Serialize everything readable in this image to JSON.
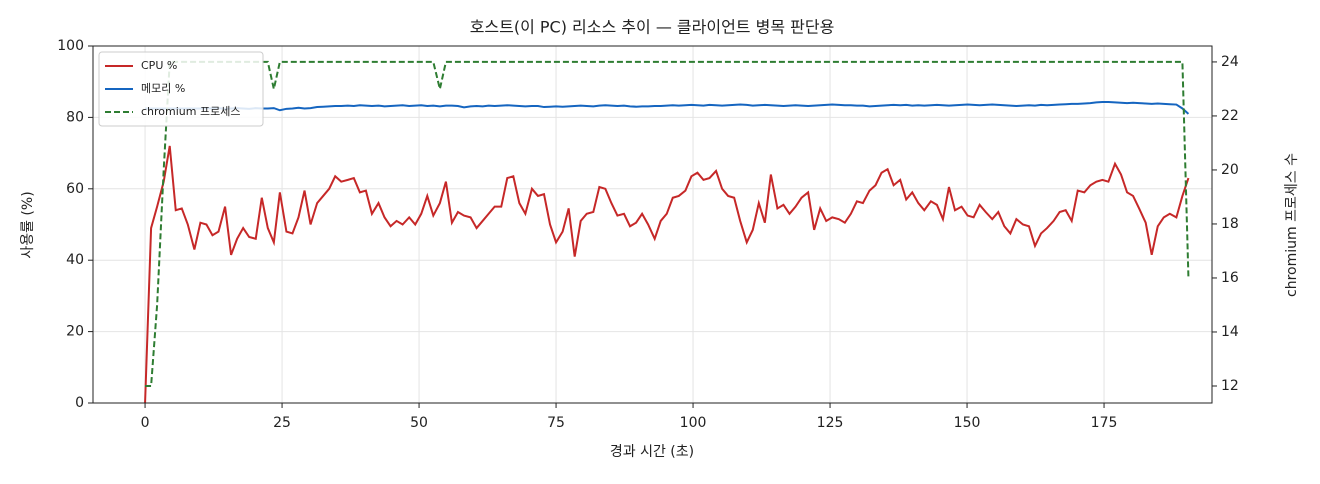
{
  "chart_data": {
    "type": "line",
    "title": "호스트(이 PC) 리소스 추이 — 클라이언트 병목 판단용",
    "x_label": "경과 시간 (초)",
    "y_label": "사용률 (%)",
    "y2_label": "chromium 프로세스 수",
    "xlim": [
      -9.5,
      194.7
    ],
    "xticks": [
      0,
      25,
      50,
      75,
      100,
      125,
      150,
      175
    ],
    "ylim": [
      0,
      100
    ],
    "yticks": [
      0,
      20,
      40,
      60,
      80,
      100
    ],
    "y2lim": [
      11.37,
      24.59
    ],
    "y2ticks": [
      12,
      14,
      16,
      18,
      20,
      22,
      24
    ],
    "grid": true,
    "legend": "upper left",
    "x": [
      0,
      1.1,
      2.2,
      3.4,
      4.5,
      5.6,
      6.7,
      7.8,
      9,
      10.1,
      11.2,
      12.3,
      13.4,
      14.6,
      15.7,
      16.8,
      17.9,
      19,
      20.2,
      21.3,
      22.4,
      23.5,
      24.6,
      25.8,
      26.9,
      28,
      29.1,
      30.2,
      31.4,
      32.5,
      33.6,
      34.7,
      35.8,
      37,
      38.1,
      39.2,
      40.3,
      41.4,
      42.6,
      43.7,
      44.8,
      45.9,
      47,
      48.2,
      49.3,
      50.4,
      51.5,
      52.6,
      53.8,
      54.9,
      56,
      57.1,
      58.2,
      59.4,
      60.5,
      61.6,
      62.7,
      63.8,
      65,
      66.1,
      67.2,
      68.3,
      69.4,
      70.6,
      71.7,
      72.8,
      73.9,
      75,
      76.2,
      77.3,
      78.4,
      79.5,
      80.6,
      81.8,
      82.9,
      84,
      85.1,
      86.2,
      87.4,
      88.5,
      89.6,
      90.7,
      91.8,
      93,
      94.1,
      95.2,
      96.3,
      97.4,
      98.6,
      99.7,
      100.8,
      101.9,
      103,
      104.2,
      105.3,
      106.4,
      107.5,
      108.6,
      109.8,
      110.9,
      112,
      113.1,
      114.2,
      115.4,
      116.5,
      117.6,
      118.7,
      119.8,
      121,
      122.1,
      123.2,
      124.3,
      125.4,
      126.6,
      127.7,
      128.8,
      129.9,
      131,
      132.2,
      133.3,
      134.4,
      135.5,
      136.6,
      137.8,
      138.9,
      140,
      141.1,
      142.2,
      143.4,
      144.5,
      145.6,
      146.7,
      147.8,
      149,
      150.1,
      151.2,
      152.3,
      153.4,
      154.6,
      155.7,
      156.8,
      157.9,
      159,
      160.2,
      161.3,
      162.4,
      163.5,
      164.6,
      165.8,
      166.9,
      168,
      169.1,
      170.2,
      171.4,
      172.5,
      173.6,
      174.7,
      175.8,
      177,
      178.1,
      179.2,
      180.3,
      181.4,
      182.6,
      183.7,
      184.8,
      185.9,
      187,
      188.2,
      189.3,
      190.4
    ],
    "series": [
      {
        "name": "CPU %",
        "color": "#c62828",
        "linestyle": "solid",
        "values": [
          0,
          49,
          55,
          62,
          72,
          54,
          54.5,
          50,
          43,
          50.5,
          50,
          47,
          48,
          55,
          41.5,
          46,
          49,
          46.5,
          46,
          57.5,
          49,
          45,
          59,
          48,
          47.5,
          52,
          59.5,
          50,
          56,
          58,
          60,
          63.5,
          62,
          62.5,
          63,
          59,
          59.5,
          53,
          56,
          52,
          49.5,
          51,
          50,
          52,
          50,
          53,
          58,
          52.5,
          56,
          62,
          50.5,
          53.5,
          52.5,
          52,
          49,
          51,
          53,
          55,
          55,
          63,
          63.5,
          56,
          53,
          60,
          58,
          58.5,
          50,
          45,
          48,
          54.5,
          41,
          51,
          53,
          53.5,
          60.5,
          60,
          56,
          52.5,
          53,
          49.5,
          50.5,
          53,
          50,
          46,
          51,
          53,
          57.5,
          58,
          59.5,
          63.5,
          64.5,
          62.5,
          63,
          65,
          60,
          58,
          57.5,
          51,
          45,
          48.5,
          56,
          50.5,
          64,
          54.5,
          55.5,
          53,
          55,
          57.5,
          59,
          48.5,
          54.5,
          51,
          52,
          51.5,
          50.5,
          53,
          56.5,
          56,
          59.5,
          61,
          64.5,
          65.5,
          61,
          62.5,
          57,
          59,
          56,
          54,
          56.5,
          55.5,
          51.5,
          60.5,
          54,
          55,
          52.5,
          52,
          55.5,
          53.5,
          51.5,
          53.5,
          49.5,
          47.5,
          51.5,
          50,
          49.5,
          44,
          47.5,
          49,
          51,
          53.5,
          54,
          51,
          59.5,
          59,
          61,
          62,
          62.5,
          62,
          67,
          64,
          59,
          58,
          54.5,
          50.5,
          41.5,
          49.5,
          52,
          53,
          52,
          58,
          63
        ]
      },
      {
        "name": "메모리 %",
        "color": "#1565c0",
        "linestyle": "solid",
        "values": [
          82.5,
          82.5,
          82.5,
          82.5,
          82.5,
          82.5,
          82.5,
          82.5,
          82.5,
          82.5,
          82.6,
          82.5,
          82.6,
          82.4,
          82.5,
          82.6,
          82.5,
          82.4,
          82.6,
          82.5,
          82.5,
          82.6,
          82,
          82.4,
          82.5,
          82.7,
          82.5,
          82.6,
          82.9,
          83,
          83.1,
          83.2,
          83.2,
          83.3,
          83.2,
          83.4,
          83.3,
          83.2,
          83.3,
          83.1,
          83.2,
          83.3,
          83.4,
          83.2,
          83.3,
          83.4,
          83.2,
          83.3,
          83.1,
          83.3,
          83.3,
          83.2,
          82.8,
          83.1,
          83.2,
          83.1,
          83.3,
          83.2,
          83.3,
          83.4,
          83.3,
          83.2,
          83.1,
          83.2,
          83.2,
          82.9,
          83,
          83.1,
          83,
          83.1,
          83.2,
          83.3,
          83.2,
          83.1,
          83.3,
          83.4,
          83.3,
          83.2,
          83.3,
          83.1,
          83,
          83.1,
          83.1,
          83.2,
          83.2,
          83.3,
          83.4,
          83.3,
          83.4,
          83.5,
          83.4,
          83.3,
          83.5,
          83.4,
          83.3,
          83.4,
          83.5,
          83.6,
          83.5,
          83.3,
          83.4,
          83.5,
          83.4,
          83.3,
          83.2,
          83.3,
          83.4,
          83.3,
          83.2,
          83.3,
          83.4,
          83.5,
          83.6,
          83.5,
          83.4,
          83.4,
          83.3,
          83.3,
          83.1,
          83.2,
          83.3,
          83.4,
          83.5,
          83.4,
          83.5,
          83.3,
          83.4,
          83.3,
          83.4,
          83.5,
          83.4,
          83.3,
          83.4,
          83.5,
          83.6,
          83.5,
          83.4,
          83.5,
          83.6,
          83.5,
          83.4,
          83.3,
          83.2,
          83.3,
          83.4,
          83.3,
          83.5,
          83.4,
          83.5,
          83.6,
          83.7,
          83.8,
          83.8,
          83.9,
          84,
          84.2,
          84.3,
          84.3,
          84.2,
          84.1,
          84,
          84.1,
          84,
          83.9,
          83.8,
          83.9,
          83.8,
          83.7,
          83.6,
          82.5,
          81
        ]
      },
      {
        "name": "chromium 프로세스",
        "color": "#2e7d32",
        "linestyle": "dashed",
        "axis": "y2",
        "values": [
          12,
          12,
          15,
          20,
          24,
          24,
          24,
          24,
          24,
          24,
          24,
          24,
          24,
          24,
          24,
          24,
          24,
          24,
          24,
          24,
          24,
          23,
          24,
          24,
          24,
          24,
          24,
          24,
          24,
          24,
          24,
          24,
          24,
          24,
          24,
          24,
          24,
          24,
          24,
          24,
          24,
          24,
          24,
          24,
          24,
          24,
          24,
          24,
          23,
          24,
          24,
          24,
          24,
          24,
          24,
          24,
          24,
          24,
          24,
          24,
          24,
          24,
          24,
          24,
          24,
          24,
          24,
          24,
          24,
          24,
          24,
          24,
          24,
          24,
          24,
          24,
          24,
          24,
          24,
          24,
          24,
          24,
          24,
          24,
          24,
          24,
          24,
          24,
          24,
          24,
          24,
          24,
          24,
          24,
          24,
          24,
          24,
          24,
          24,
          24,
          24,
          24,
          24,
          24,
          24,
          24,
          24,
          24,
          24,
          24,
          24,
          24,
          24,
          24,
          24,
          24,
          24,
          24,
          24,
          24,
          24,
          24,
          24,
          24,
          24,
          24,
          24,
          24,
          24,
          24,
          24,
          24,
          24,
          24,
          24,
          24,
          24,
          24,
          24,
          24,
          24,
          24,
          24,
          24,
          24,
          24,
          24,
          24,
          24,
          24,
          24,
          24,
          24,
          24,
          24,
          24,
          24,
          24,
          24,
          24,
          24,
          24,
          24,
          24,
          24,
          24,
          24,
          24,
          24,
          24,
          16
        ]
      }
    ]
  }
}
